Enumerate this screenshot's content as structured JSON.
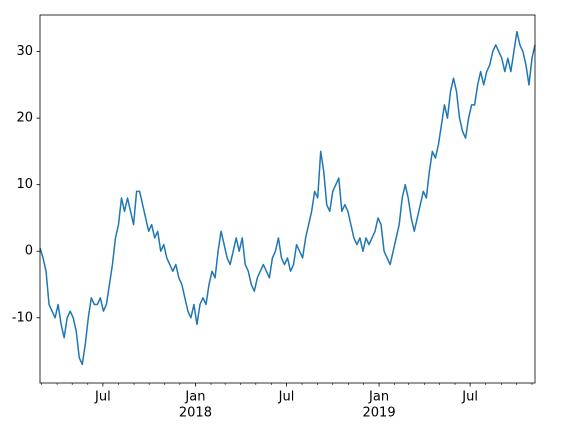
{
  "chart_data": {
    "type": "line",
    "x": [
      "2017-02-26",
      "2017-03-04",
      "2017-03-10",
      "2017-03-16",
      "2017-03-22",
      "2017-03-28",
      "2017-04-03",
      "2017-04-09",
      "2017-04-15",
      "2017-04-21",
      "2017-04-27",
      "2017-05-03",
      "2017-05-09",
      "2017-05-15",
      "2017-05-21",
      "2017-05-27",
      "2017-06-02",
      "2017-06-08",
      "2017-06-14",
      "2017-06-20",
      "2017-06-26",
      "2017-07-02",
      "2017-07-08",
      "2017-07-14",
      "2017-07-20",
      "2017-07-26",
      "2017-08-01",
      "2017-08-07",
      "2017-08-13",
      "2017-08-19",
      "2017-08-25",
      "2017-08-31",
      "2017-09-06",
      "2017-09-12",
      "2017-09-18",
      "2017-09-24",
      "2017-09-30",
      "2017-10-06",
      "2017-10-12",
      "2017-10-18",
      "2017-10-24",
      "2017-10-30",
      "2017-11-05",
      "2017-11-11",
      "2017-11-17",
      "2017-11-23",
      "2017-11-29",
      "2017-12-05",
      "2017-12-11",
      "2017-12-17",
      "2017-12-23",
      "2017-12-29",
      "2018-01-04",
      "2018-01-10",
      "2018-01-16",
      "2018-01-22",
      "2018-01-28",
      "2018-02-03",
      "2018-02-09",
      "2018-02-15",
      "2018-02-21",
      "2018-02-27",
      "2018-03-05",
      "2018-03-11",
      "2018-03-17",
      "2018-03-23",
      "2018-03-29",
      "2018-04-04",
      "2018-04-10",
      "2018-04-16",
      "2018-04-22",
      "2018-04-28",
      "2018-05-04",
      "2018-05-10",
      "2018-05-16",
      "2018-05-22",
      "2018-05-28",
      "2018-06-03",
      "2018-06-09",
      "2018-06-15",
      "2018-06-21",
      "2018-06-27",
      "2018-07-03",
      "2018-07-09",
      "2018-07-15",
      "2018-07-21",
      "2018-07-27",
      "2018-08-02",
      "2018-08-08",
      "2018-08-14",
      "2018-08-20",
      "2018-08-26",
      "2018-09-01",
      "2018-09-07",
      "2018-09-13",
      "2018-09-19",
      "2018-09-25",
      "2018-10-01",
      "2018-10-07",
      "2018-10-13",
      "2018-10-19",
      "2018-10-25",
      "2018-10-31",
      "2018-11-06",
      "2018-11-12",
      "2018-11-18",
      "2018-11-24",
      "2018-11-30",
      "2018-12-06",
      "2018-12-12",
      "2018-12-18",
      "2018-12-24",
      "2018-12-30",
      "2019-01-05",
      "2019-01-11",
      "2019-01-17",
      "2019-01-23",
      "2019-01-29",
      "2019-02-04",
      "2019-02-10",
      "2019-02-16",
      "2019-02-22",
      "2019-02-28",
      "2019-03-06",
      "2019-03-12",
      "2019-03-18",
      "2019-03-24",
      "2019-03-30",
      "2019-04-05",
      "2019-04-11",
      "2019-04-17",
      "2019-04-23",
      "2019-04-29",
      "2019-05-05",
      "2019-05-11",
      "2019-05-17",
      "2019-05-23",
      "2019-05-29",
      "2019-06-04",
      "2019-06-10",
      "2019-06-16",
      "2019-06-22",
      "2019-06-28",
      "2019-07-04",
      "2019-07-10",
      "2019-07-16",
      "2019-07-22",
      "2019-07-28",
      "2019-08-03",
      "2019-08-09",
      "2019-08-15",
      "2019-08-21",
      "2019-08-27",
      "2019-09-02",
      "2019-09-08",
      "2019-09-14",
      "2019-09-20",
      "2019-09-26",
      "2019-10-02",
      "2019-10-08",
      "2019-10-14",
      "2019-10-20",
      "2019-10-26",
      "2019-11-01",
      "2019-11-07"
    ],
    "series": [
      {
        "color": "#1f77b4",
        "values": [
          0.5,
          -1,
          -3,
          -8,
          -9,
          -10,
          -8,
          -11,
          -13,
          -10,
          -9,
          -10,
          -12,
          -16,
          -17,
          -14,
          -10,
          -7,
          -8,
          -8,
          -7,
          -9,
          -8,
          -5,
          -2,
          2,
          4,
          8,
          6,
          8,
          6,
          4,
          9,
          9,
          7,
          5,
          3,
          4,
          2,
          3,
          0,
          1,
          -1,
          -2,
          -3,
          -2,
          -4,
          -5,
          -7,
          -9,
          -10,
          -8,
          -11,
          -8,
          -7,
          -8,
          -5,
          -3,
          -4,
          0,
          3,
          1,
          -1,
          -2,
          0,
          2,
          0,
          2,
          -2,
          -3,
          -5,
          -6,
          -4,
          -3,
          -2,
          -3,
          -4,
          -1,
          0,
          2,
          -1,
          -2,
          -1,
          -3,
          -2,
          1,
          0,
          -1,
          2,
          4,
          6,
          9,
          8,
          15,
          12,
          7,
          6,
          9,
          10,
          11,
          6,
          7,
          6,
          4,
          2,
          1,
          2,
          0,
          2,
          1,
          2,
          3,
          5,
          4,
          0,
          -1,
          -2,
          0,
          2,
          4,
          8,
          10,
          8,
          5,
          3,
          5,
          7,
          9,
          8,
          12,
          15,
          14,
          16,
          19,
          22,
          20,
          24,
          26,
          24,
          20,
          18,
          17,
          20,
          22,
          22,
          25,
          27,
          25,
          27,
          28,
          30,
          31,
          30,
          29,
          27,
          29,
          27,
          30,
          33,
          31,
          30,
          28,
          25,
          29,
          31
        ]
      }
    ],
    "xlim": [
      "2017-02-26",
      "2019-11-07"
    ],
    "xticks": [
      {
        "value": "2017-07-01",
        "label": [
          "Jul"
        ]
      },
      {
        "value": "2018-01-01",
        "label": [
          "Jan",
          "2018"
        ]
      },
      {
        "value": "2018-07-01",
        "label": [
          "Jul"
        ]
      },
      {
        "value": "2019-01-01",
        "label": [
          "Jan",
          "2019"
        ]
      },
      {
        "value": "2019-07-01",
        "label": [
          "Jul"
        ]
      }
    ],
    "xminorticks": [
      "2017-03-01",
      "2017-04-01",
      "2017-05-01",
      "2017-06-01",
      "2017-08-01",
      "2017-09-01",
      "2017-10-01",
      "2017-11-01",
      "2017-12-01",
      "2018-02-01",
      "2018-03-01",
      "2018-04-01",
      "2018-05-01",
      "2018-06-01",
      "2018-08-01",
      "2018-09-01",
      "2018-10-01",
      "2018-11-01",
      "2018-12-01",
      "2019-02-01",
      "2019-03-01",
      "2019-04-01",
      "2019-05-01",
      "2019-06-01",
      "2019-08-01",
      "2019-09-01",
      "2019-10-01",
      "2019-11-01"
    ],
    "ylim": [
      -19.8,
      35.5
    ],
    "yticks": [
      -10,
      0,
      10,
      20,
      30
    ]
  }
}
